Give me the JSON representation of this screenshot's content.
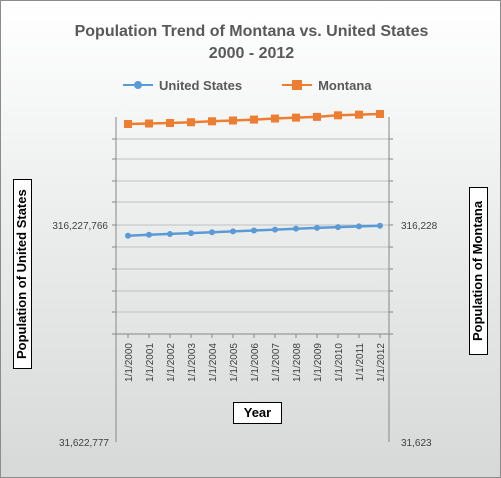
{
  "chart_data": {
    "type": "line",
    "title_line1": "Population Trend of  Montana vs. United States",
    "title_line2": "2000 - 2012",
    "xlabel": "Year",
    "ylabel_left": "Population of United States",
    "ylabel_right": "Population of  Montana",
    "scale": "log",
    "left_axis_ticks": [
      "316,227,766",
      "31,622,777"
    ],
    "right_axis_ticks": [
      "316,228",
      "31,623"
    ],
    "categories": [
      "1/1/2000",
      "1/1/2001",
      "1/1/2002",
      "1/1/2003",
      "1/1/2004",
      "1/1/2005",
      "1/1/2006",
      "1/1/2007",
      "1/1/2008",
      "1/1/2009",
      "1/1/2010",
      "1/1/2011",
      "1/1/2012"
    ],
    "series": [
      {
        "name": "United States",
        "axis": "left",
        "color": "#5b9bd5",
        "marker": "circle",
        "values": [
          282200000,
          285000000,
          287600000,
          290100000,
          292800000,
          295500000,
          298400000,
          301200000,
          304100000,
          306800000,
          309300000,
          311600000,
          313900000
        ]
      },
      {
        "name": "Montana",
        "axis": "right",
        "color": "#ed7d31",
        "marker": "square",
        "values": [
          902195,
          906961,
          911667,
          919630,
          929025,
          937076,
          946265,
          957044,
          966355,
          974480,
          990898,
          998199,
          1005141
        ]
      }
    ]
  }
}
